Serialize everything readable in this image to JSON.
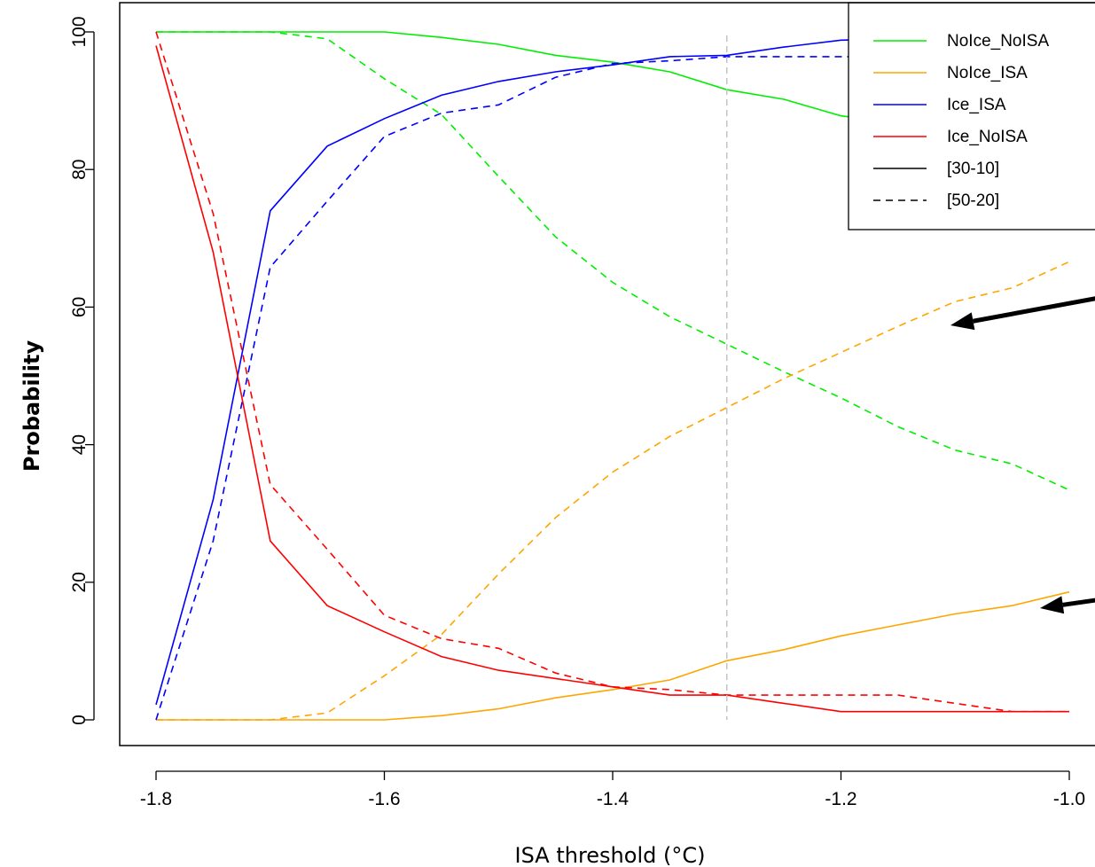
{
  "chart_data": {
    "type": "line",
    "xlabel": "ISA threshold (°C)",
    "ylabel": "Probability",
    "xlim": [
      -1.8,
      -1.0
    ],
    "ylim": [
      0,
      100
    ],
    "x_ticks": [
      -1.8,
      -1.6,
      -1.4,
      -1.2,
      -1.0
    ],
    "x_tick_labels": [
      "-1.8",
      "-1.6",
      "-1.4",
      "-1.2",
      "-1.0"
    ],
    "y_ticks": [
      0,
      20,
      40,
      60,
      80,
      100
    ],
    "y_tick_labels": [
      "0",
      "20",
      "40",
      "60",
      "80",
      "100"
    ],
    "grid": false,
    "legend_position": "top-right",
    "reference_line": {
      "x": -1.3,
      "color": "#c0c0c0",
      "style": "dashed"
    },
    "legend": [
      {
        "label": "NoIce_NoISA",
        "color": "#00ee00",
        "style": "solid"
      },
      {
        "label": "NoIce_ISA",
        "color": "#ffa500",
        "style": "solid"
      },
      {
        "label": "Ice_ISA",
        "color": "#0000ff",
        "style": "solid"
      },
      {
        "label": "Ice_NoISA",
        "color": "#ff0000",
        "style": "solid"
      },
      {
        "label": "[30-10]",
        "color": "#000000",
        "style": "solid"
      },
      {
        "label": "[50-20]",
        "color": "#000000",
        "style": "dashed"
      }
    ],
    "series": [
      {
        "category": "NoIce_NoISA",
        "period": "[30-10]",
        "color": "#00ee00",
        "style": "solid",
        "x": [
          -1.8,
          -1.75,
          -1.7,
          -1.65,
          -1.6,
          -1.55,
          -1.5,
          -1.45,
          -1.4,
          -1.35,
          -1.3,
          -1.25,
          -1.2,
          -1.15,
          -1.1,
          -1.05,
          -1.0
        ],
        "y": [
          100,
          100,
          100,
          100,
          100,
          99.2,
          98.2,
          96.6,
          95.6,
          94.2,
          91.6,
          90.2,
          87.8,
          86.8,
          85.8,
          84.8,
          83.8
        ]
      },
      {
        "category": "NoIce_NoISA",
        "period": "[50-20]",
        "color": "#00ee00",
        "style": "dashed",
        "x": [
          -1.8,
          -1.75,
          -1.7,
          -1.65,
          -1.6,
          -1.55,
          -1.5,
          -1.45,
          -1.4,
          -1.35,
          -1.3,
          -1.25,
          -1.2,
          -1.15,
          -1.1,
          -1.05,
          -1.0
        ],
        "y": [
          100,
          100,
          100,
          99,
          93.2,
          88,
          79,
          70.2,
          63.6,
          58.6,
          54.6,
          50.6,
          46.8,
          42.6,
          39.2,
          37.2,
          33.4
        ]
      },
      {
        "category": "NoIce_ISA",
        "period": "[30-10]",
        "color": "#ffa500",
        "style": "solid",
        "x": [
          -1.8,
          -1.75,
          -1.7,
          -1.65,
          -1.6,
          -1.55,
          -1.5,
          -1.45,
          -1.4,
          -1.35,
          -1.3,
          -1.25,
          -1.2,
          -1.15,
          -1.1,
          -1.05,
          -1.0
        ],
        "y": [
          0,
          0,
          0,
          0,
          0,
          0.6,
          1.6,
          3.2,
          4.4,
          5.8,
          8.6,
          10.2,
          12.2,
          13.8,
          15.4,
          16.6,
          18.6
        ]
      },
      {
        "category": "NoIce_ISA",
        "period": "[50-20]",
        "color": "#ffa500",
        "style": "dashed",
        "x": [
          -1.8,
          -1.75,
          -1.7,
          -1.65,
          -1.6,
          -1.55,
          -1.5,
          -1.45,
          -1.4,
          -1.35,
          -1.3,
          -1.25,
          -1.2,
          -1.15,
          -1.1,
          -1.05,
          -1.0
        ],
        "y": [
          0,
          0,
          0,
          1,
          6.4,
          12.4,
          21.2,
          29.4,
          36,
          41.2,
          45.4,
          49.6,
          53.4,
          57.2,
          60.8,
          62.8,
          66.6
        ]
      },
      {
        "category": "Ice_ISA",
        "period": "[30-10]",
        "color": "#0000ff",
        "style": "solid",
        "x": [
          -1.8,
          -1.75,
          -1.7,
          -1.65,
          -1.6,
          -1.55,
          -1.5,
          -1.45,
          -1.4,
          -1.35,
          -1.3,
          -1.25,
          -1.2,
          -1.15,
          -1.1,
          -1.05,
          -1.0
        ],
        "y": [
          2.2,
          32,
          74,
          83.4,
          87.4,
          90.8,
          92.8,
          94.2,
          95.2,
          96.4,
          96.6,
          97.8,
          98.8,
          99,
          99.2,
          99.4,
          99.6
        ]
      },
      {
        "category": "Ice_ISA",
        "period": "[50-20]",
        "color": "#0000ff",
        "style": "dashed",
        "x": [
          -1.8,
          -1.75,
          -1.7,
          -1.65,
          -1.6,
          -1.55,
          -1.5,
          -1.45,
          -1.4,
          -1.35,
          -1.3,
          -1.25,
          -1.2,
          -1.15,
          -1.1,
          -1.05,
          -1.0
        ],
        "y": [
          0,
          26,
          65.8,
          75.4,
          84.8,
          88.2,
          89.4,
          93.4,
          95.4,
          95.8,
          96.4,
          96.4,
          96.4,
          96.4,
          96.4,
          96.4,
          96.4
        ]
      },
      {
        "category": "Ice_NoISA",
        "period": "[30-10]",
        "color": "#ff0000",
        "style": "solid",
        "x": [
          -1.8,
          -1.75,
          -1.7,
          -1.65,
          -1.6,
          -1.55,
          -1.5,
          -1.45,
          -1.4,
          -1.35,
          -1.3,
          -1.25,
          -1.2,
          -1.15,
          -1.1,
          -1.05,
          -1.0
        ],
        "y": [
          98,
          68,
          26,
          16.6,
          12.8,
          9.2,
          7.2,
          6,
          4.8,
          3.6,
          3.6,
          2.4,
          1.2,
          1.2,
          1.2,
          1.2,
          1.2
        ]
      },
      {
        "category": "Ice_NoISA",
        "period": "[50-20]",
        "color": "#ff0000",
        "style": "dashed",
        "x": [
          -1.8,
          -1.75,
          -1.7,
          -1.65,
          -1.6,
          -1.55,
          -1.5,
          -1.45,
          -1.4,
          -1.35,
          -1.3,
          -1.25,
          -1.2,
          -1.15,
          -1.1,
          -1.05,
          -1.0
        ],
        "y": [
          100,
          73.6,
          34.2,
          24.8,
          15.2,
          11.8,
          10.4,
          6.8,
          4.8,
          4.4,
          3.6,
          3.6,
          3.6,
          3.6,
          2.4,
          1.2,
          1.2
        ]
      }
    ],
    "annotations": [
      {
        "type": "arrow",
        "points_to_series": "NoIce_ISA [50-20]"
      },
      {
        "type": "arrow",
        "points_to_series": "NoIce_ISA [30-10]"
      }
    ]
  }
}
